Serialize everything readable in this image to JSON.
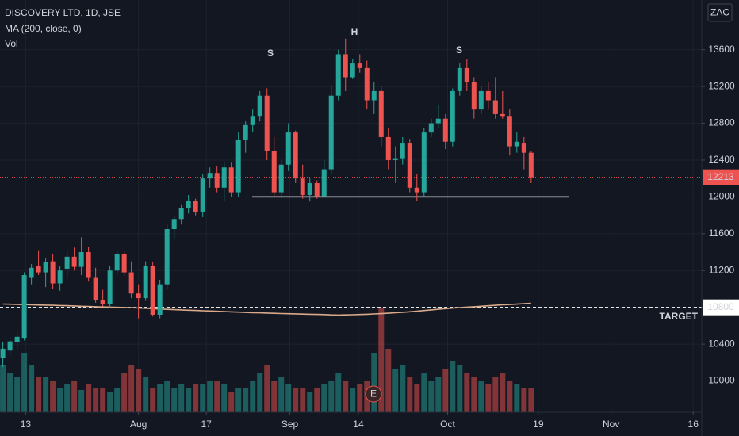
{
  "chart_data": {
    "type": "candlestick",
    "title": "DISCOVERY LTD, 1D, JSE",
    "indicator_labels": [
      "MA (200, close, 0)",
      "Vol"
    ],
    "currency": "ZAC",
    "up_color": "#26a69a",
    "down_color": "#ef5350",
    "ma_color": "#d9a98a",
    "grid": true,
    "ylim": [
      9660,
      14140
    ],
    "yticks": [
      10000,
      10400,
      10800,
      11200,
      11600,
      12000,
      12400,
      12800,
      13200,
      13600
    ],
    "xlim": [
      -0.4,
      97.9
    ],
    "xticks": [
      {
        "value": 3.2,
        "label": "13"
      },
      {
        "value": 19,
        "label": "Aug"
      },
      {
        "value": 28.5,
        "label": "17"
      },
      {
        "value": 40.2,
        "label": "Sep"
      },
      {
        "value": 49.8,
        "label": "14"
      },
      {
        "value": 62.3,
        "label": "Oct"
      },
      {
        "value": 75,
        "label": "19"
      },
      {
        "value": 85.2,
        "label": "Nov"
      },
      {
        "value": 96.7,
        "label": "16"
      }
    ],
    "open": [
      10250,
      10330,
      10420,
      10460,
      11120,
      11250,
      11180,
      11300,
      11060,
      11220,
      11350,
      11240,
      11400,
      11120,
      10880,
      10840,
      11200,
      11380,
      11180,
      10950,
      10900,
      11250,
      10720,
      11050,
      11650,
      11760,
      11880,
      11960,
      11840,
      12200,
      12260,
      12100,
      12320,
      12050,
      12620,
      12780,
      12880,
      13100,
      12500,
      12050,
      12350,
      12700,
      12200,
      12020,
      12150,
      12010,
      12300,
      13100,
      13550,
      13300,
      13450,
      13400,
      13050,
      13150,
      12650,
      12400,
      12420,
      12580,
      12100,
      12050,
      12700,
      12800,
      12850,
      12600,
      13150,
      13400,
      13250,
      12950,
      13150,
      13050,
      12900,
      12880,
      12550,
      12580,
      12480
    ],
    "high": [
      10420,
      10480,
      10560,
      11180,
      11270,
      11420,
      11330,
      11380,
      11250,
      11420,
      11450,
      11560,
      11460,
      11230,
      10990,
      11250,
      11420,
      11410,
      11300,
      11050,
      11300,
      11290,
      11100,
      11700,
      11800,
      11920,
      12020,
      11980,
      12250,
      12320,
      12330,
      12380,
      12380,
      12700,
      12820,
      12950,
      13150,
      13180,
      12650,
      12400,
      12800,
      12720,
      12350,
      12200,
      12180,
      12400,
      13200,
      13600,
      13720,
      13500,
      13550,
      13480,
      13250,
      13200,
      12750,
      12550,
      12650,
      12630,
      12250,
      12750,
      12850,
      13000,
      12900,
      13180,
      13450,
      13500,
      13300,
      13200,
      13250,
      13300,
      13150,
      12950,
      12700,
      12650,
      12500
    ],
    "low": [
      10150,
      10280,
      10350,
      10440,
      11050,
      11150,
      11020,
      11000,
      10980,
      11120,
      11200,
      11150,
      11080,
      10850,
      10810,
      10800,
      11150,
      11140,
      10900,
      10680,
      10870,
      10700,
      10680,
      11000,
      11550,
      11700,
      11820,
      11800,
      11780,
      12100,
      12050,
      11950,
      12000,
      12000,
      12480,
      12700,
      12820,
      12400,
      12000,
      11990,
      12280,
      12150,
      11980,
      11950,
      11980,
      11990,
      12250,
      13050,
      13150,
      13280,
      13350,
      12950,
      12900,
      12550,
      12300,
      12150,
      12350,
      12050,
      11960,
      12000,
      12650,
      12750,
      12520,
      12550,
      13100,
      13150,
      12850,
      12900,
      12950,
      12850,
      12850,
      12450,
      12480,
      12300,
      12150
    ],
    "close": [
      10350,
      10430,
      10480,
      11150,
      11230,
      11180,
      11290,
      11060,
      11200,
      11350,
      11240,
      11400,
      11120,
      10880,
      10840,
      11200,
      11380,
      11180,
      10950,
      10900,
      11250,
      10720,
      11050,
      11650,
      11760,
      11880,
      11960,
      11840,
      12200,
      12260,
      12100,
      12320,
      12050,
      12620,
      12780,
      12880,
      13100,
      12500,
      12050,
      12350,
      12700,
      12200,
      12020,
      12150,
      12010,
      12300,
      13100,
      13550,
      13300,
      13450,
      13400,
      13050,
      13150,
      12650,
      12400,
      12420,
      12580,
      12100,
      12050,
      12700,
      12800,
      12850,
      12600,
      13150,
      13400,
      13250,
      12950,
      13150,
      13050,
      12900,
      12880,
      12550,
      12600,
      12480,
      12213
    ],
    "volume": [
      60,
      50,
      45,
      75,
      60,
      45,
      45,
      40,
      30,
      35,
      40,
      28,
      35,
      30,
      30,
      25,
      30,
      50,
      60,
      55,
      45,
      30,
      35,
      40,
      30,
      35,
      30,
      35,
      35,
      40,
      40,
      35,
      25,
      30,
      30,
      40,
      50,
      60,
      40,
      45,
      35,
      30,
      30,
      25,
      30,
      35,
      40,
      50,
      40,
      30,
      35,
      40,
      75,
      132,
      80,
      55,
      60,
      45,
      35,
      50,
      40,
      45,
      55,
      65,
      60,
      50,
      45,
      40,
      35,
      45,
      50,
      40,
      35,
      30,
      30
    ],
    "ma": [
      10836,
      10834,
      10832,
      10830,
      10828,
      10826,
      10824,
      10822,
      10820,
      10818,
      10815,
      10812,
      10810,
      10807,
      10804,
      10802,
      10800,
      10798,
      10796,
      10793,
      10790,
      10786,
      10782,
      10778,
      10775,
      10772,
      10769,
      10766,
      10763,
      10760,
      10757,
      10754,
      10751,
      10748,
      10745,
      10742,
      10740,
      10738,
      10735,
      10733,
      10731,
      10729,
      10727,
      10725,
      10723,
      10721,
      10718,
      10716,
      10718,
      10720,
      10722,
      10725,
      10728,
      10732,
      10736,
      10741,
      10746,
      10752,
      10758,
      10765,
      10772,
      10779,
      10786,
      10792,
      10797,
      10802,
      10807,
      10812,
      10817,
      10822,
      10827,
      10831,
      10835,
      10840,
      10845
    ],
    "annotations": [
      "S",
      "H",
      "S"
    ],
    "neckline": 12000,
    "target": {
      "value": 10800,
      "text": "TARGET"
    },
    "last_price": 12213,
    "earnings_marker": "E"
  }
}
